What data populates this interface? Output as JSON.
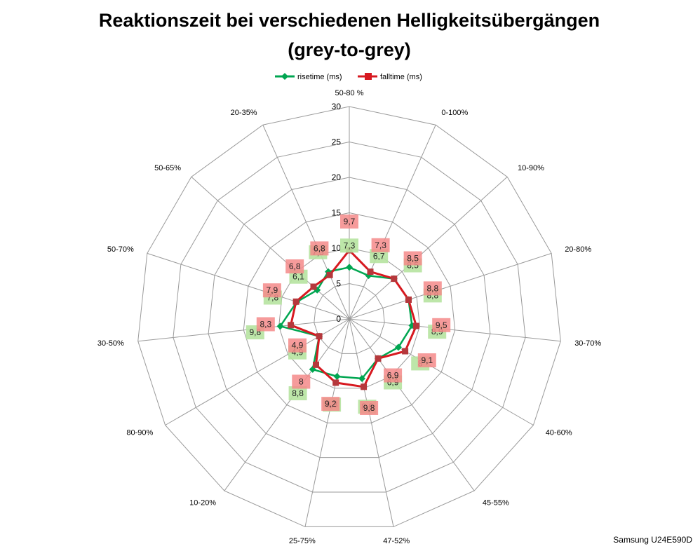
{
  "chart_data": {
    "type": "radar",
    "title_lines": [
      "Reaktionszeit bei verschiedenen Helligkeitsübergängen",
      "(grey-to-grey)"
    ],
    "categories": [
      "50-80 %",
      "0-100%",
      "10-90%",
      "20-80%",
      "30-70%",
      "40-60%",
      "45-55%",
      "47-52%",
      "25-75%",
      "10-20%",
      "80-90%",
      "30-50%",
      "50-70%",
      "50-65%",
      "20-35%"
    ],
    "axis": {
      "min": 0,
      "max": 30,
      "ticks": [
        "0",
        "5",
        "10",
        "15",
        "20",
        "25",
        "30"
      ]
    },
    "series": [
      {
        "name": "risetime (ms)",
        "color": "#00a651",
        "label_bg": "#b6e3a0",
        "values": [
          7.3,
          6.7,
          8.5,
          8.8,
          8.9,
          8,
          6.9,
          8.6,
          8.3,
          8.8,
          4.9,
          9.8,
          7.8,
          6.1,
          7.3
        ],
        "labels": [
          "7,3",
          "6,7",
          "8,5",
          "8,8",
          "8,9",
          "8",
          "6,9",
          "8,6",
          "8,3",
          "8,8",
          "4,9",
          "9,8",
          "7,8",
          "6,1",
          "7,3"
        ]
      },
      {
        "name": "falltime (ms)",
        "color": "#d71920",
        "label_bg": "#f58a8a",
        "values": [
          9.7,
          7.3,
          8.5,
          8.8,
          9.5,
          9.1,
          6.9,
          9.8,
          9.2,
          8,
          4.9,
          8.3,
          7.9,
          6.8,
          6.8
        ],
        "labels": [
          "9,7",
          "7,3",
          "8,5",
          "8,8",
          "9,5",
          "9,1",
          "6,9",
          "9,8",
          "9,2",
          "8",
          "4,9",
          "8,3",
          "7,9",
          "6,8",
          "6,8"
        ]
      }
    ],
    "legend_position": "top",
    "grid": true
  },
  "footer": {
    "credit": "Samsung U24E590D"
  }
}
